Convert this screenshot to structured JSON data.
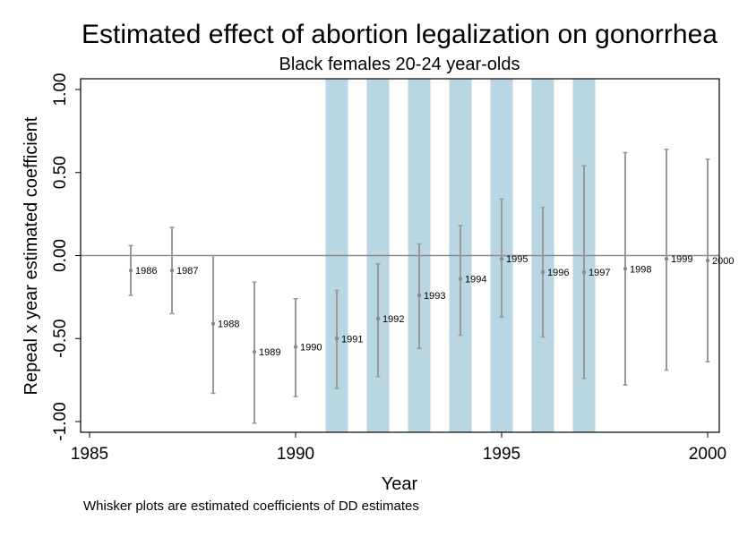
{
  "chart_data": {
    "type": "scatter",
    "title": "Estimated effect of abortion legalization on gonorrhea",
    "subtitle": "Black females 20-24 year-olds",
    "xlabel": "Year",
    "ylabel": "Repeal x year estimated coefficient",
    "note": "Whisker plots are estimated coefficients of DD estimates",
    "xlim": [
      1985,
      2000
    ],
    "ylim": [
      -1.07,
      1.07
    ],
    "x_ticks": [
      1985,
      1990,
      1995,
      2000
    ],
    "x_tick_labels": [
      "1985",
      "1990",
      "1995",
      "2000"
    ],
    "y_ticks": [
      1.0,
      0.5,
      0.0,
      -0.5,
      -1.0
    ],
    "y_tick_labels": [
      "1.00",
      "0.50",
      "0.00",
      "-0.50",
      "-1.00"
    ],
    "reference_line": 0,
    "shaded_years": [
      1991,
      1992,
      1993,
      1994,
      1995,
      1996,
      1997
    ],
    "colors": {
      "whisker": "#9a9a9a",
      "point": "#8a8a8a",
      "shade": "#b9d7e3",
      "zero_line": "#8c8c8c",
      "frame": "#000000"
    },
    "points": [
      {
        "year": 1986,
        "label": "1986",
        "estimate": -0.09,
        "lower": -0.24,
        "upper": 0.06
      },
      {
        "year": 1987,
        "label": "1987",
        "estimate": -0.09,
        "lower": -0.35,
        "upper": 0.17
      },
      {
        "year": 1988,
        "label": "1988",
        "estimate": -0.41,
        "lower": -0.83,
        "upper": 0.0
      },
      {
        "year": 1989,
        "label": "1989",
        "estimate": -0.58,
        "lower": -1.01,
        "upper": -0.16
      },
      {
        "year": 1990,
        "label": "1990",
        "estimate": -0.55,
        "lower": -0.85,
        "upper": -0.26
      },
      {
        "year": 1991,
        "label": "1991",
        "estimate": -0.5,
        "lower": -0.8,
        "upper": -0.21
      },
      {
        "year": 1992,
        "label": "1992",
        "estimate": -0.38,
        "lower": -0.73,
        "upper": -0.05
      },
      {
        "year": 1993,
        "label": "1993",
        "estimate": -0.24,
        "lower": -0.56,
        "upper": 0.07
      },
      {
        "year": 1994,
        "label": "1994",
        "estimate": -0.14,
        "lower": -0.48,
        "upper": 0.18
      },
      {
        "year": 1995,
        "label": "1995",
        "estimate": -0.02,
        "lower": -0.37,
        "upper": 0.34
      },
      {
        "year": 1996,
        "label": "1996",
        "estimate": -0.1,
        "lower": -0.49,
        "upper": 0.29
      },
      {
        "year": 1997,
        "label": "1997",
        "estimate": -0.1,
        "lower": -0.74,
        "upper": 0.54
      },
      {
        "year": 1998,
        "label": "1998",
        "estimate": -0.08,
        "lower": -0.78,
        "upper": 0.62
      },
      {
        "year": 1999,
        "label": "1999",
        "estimate": -0.02,
        "lower": -0.69,
        "upper": 0.64
      },
      {
        "year": 2000,
        "label": "2000",
        "estimate": -0.03,
        "lower": -0.64,
        "upper": 0.58
      }
    ]
  }
}
